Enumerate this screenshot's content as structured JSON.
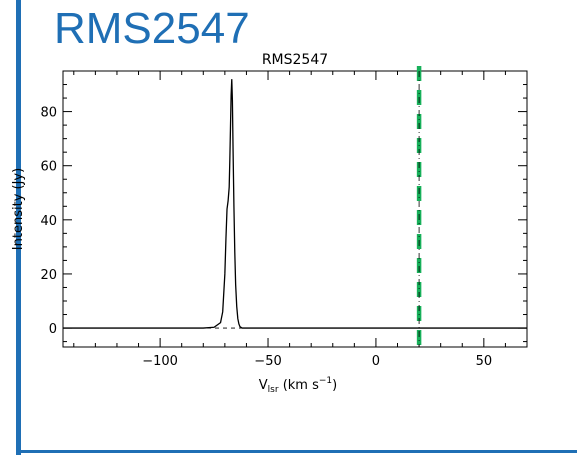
{
  "slide": {
    "title": "RMS2547"
  },
  "chart_data": {
    "type": "line",
    "title": "RMS2547",
    "xlabel_main": "V",
    "xlabel_sub": "lsr",
    "xlabel_units": " (km s",
    "xlabel_exp": "−1",
    "xlabel_close": ")",
    "ylabel": "Intensity (Jy)",
    "xlim": [
      -145,
      70
    ],
    "ylim": [
      -7,
      95
    ],
    "x_ticks": [
      -100,
      -50,
      0,
      50
    ],
    "x_tick_labels": [
      "−100",
      "−50",
      "0",
      "50"
    ],
    "y_ticks": [
      0,
      20,
      40,
      60,
      80
    ],
    "y_tick_labels": [
      "0",
      "20",
      "40",
      "60",
      "80"
    ],
    "marker_line": {
      "x": 20,
      "color": "#17b05a",
      "style": "dashed"
    },
    "series": [
      {
        "x": [
          -145,
          -80,
          -75,
          -72,
          -71,
          -70,
          -69.5,
          -69,
          -68.5,
          -68,
          -67.7,
          -67.4,
          -67.1,
          -66.8,
          -66.5,
          -66.2,
          -65.8,
          -65.4,
          -65,
          -64.5,
          -64,
          -63.5,
          -63,
          -62,
          -60,
          -50,
          0,
          70
        ],
        "y": [
          0,
          0,
          0.3,
          2,
          6,
          20,
          33,
          44,
          47,
          52,
          62,
          74,
          86,
          92,
          84,
          66,
          45,
          28,
          16,
          8,
          3.5,
          1.5,
          0.5,
          0,
          0,
          0,
          0,
          0
        ]
      }
    ]
  }
}
